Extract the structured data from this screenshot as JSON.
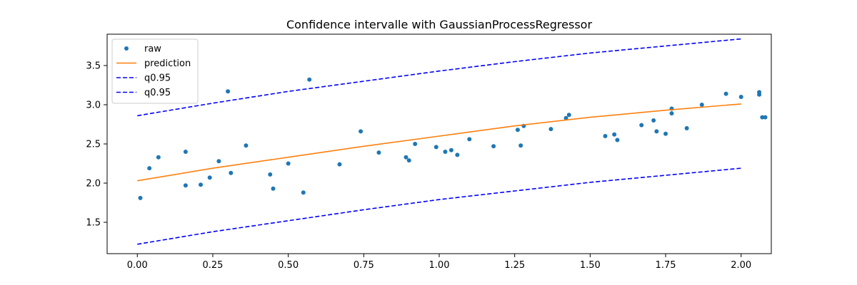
{
  "chart_data": {
    "type": "line",
    "title": "Confidence intervalle with GaussianProcessRegressor",
    "xlabel": "",
    "ylabel": "",
    "xlim": [
      -0.1,
      2.1
    ],
    "ylim": [
      1.1,
      3.9
    ],
    "x_ticks": [
      0.0,
      0.25,
      0.5,
      0.75,
      1.0,
      1.25,
      1.5,
      1.75,
      2.0
    ],
    "x_tick_labels": [
      "0.00",
      "0.25",
      "0.50",
      "0.75",
      "1.00",
      "1.25",
      "1.50",
      "1.75",
      "2.00"
    ],
    "y_ticks": [
      1.5,
      2.0,
      2.5,
      3.0,
      3.5
    ],
    "y_tick_labels": [
      "1.5",
      "2.0",
      "2.5",
      "3.0",
      "3.5"
    ],
    "grid": false,
    "legend_position": "top-left",
    "series": [
      {
        "name": "raw",
        "kind": "scatter",
        "color": "#1f77b4",
        "x": [
          0.01,
          0.04,
          0.07,
          0.16,
          0.16,
          0.21,
          0.24,
          0.27,
          0.3,
          0.31,
          0.36,
          0.44,
          0.45,
          0.5,
          0.55,
          0.57,
          0.67,
          0.74,
          0.8,
          0.89,
          0.9,
          0.92,
          0.99,
          1.02,
          1.04,
          1.06,
          1.1,
          1.18,
          1.26,
          1.27,
          1.28,
          1.37,
          1.42,
          1.43,
          1.55,
          1.58,
          1.59,
          1.67,
          1.71,
          1.72,
          1.75,
          1.77,
          1.77,
          1.82,
          1.87,
          1.95,
          2.0,
          2.06,
          2.06,
          2.07,
          2.08
        ],
        "y": [
          1.81,
          2.19,
          2.33,
          2.4,
          1.97,
          1.98,
          2.07,
          2.28,
          3.17,
          2.13,
          2.48,
          2.11,
          1.93,
          2.25,
          1.88,
          3.32,
          2.24,
          2.66,
          2.39,
          2.33,
          2.29,
          2.5,
          2.46,
          2.4,
          2.42,
          2.36,
          2.56,
          2.47,
          2.68,
          2.48,
          2.73,
          2.69,
          2.83,
          2.87,
          2.6,
          2.62,
          2.55,
          2.74,
          2.8,
          2.66,
          2.63,
          2.95,
          2.89,
          2.7,
          3.0,
          3.14,
          3.1,
          3.13,
          3.16,
          2.84,
          2.84
        ]
      },
      {
        "name": "prediction",
        "kind": "line",
        "color": "#ff7f0e",
        "dash": "solid",
        "x": [
          0.0,
          0.25,
          0.5,
          0.75,
          1.0,
          1.25,
          1.5,
          1.75,
          2.0
        ],
        "y": [
          2.03,
          2.19,
          2.33,
          2.47,
          2.6,
          2.73,
          2.84,
          2.93,
          3.01
        ]
      },
      {
        "name": "q0.95",
        "kind": "line",
        "color": "#0000ff",
        "dash": "dashed",
        "x": [
          0.0,
          0.25,
          0.5,
          0.75,
          1.0,
          1.25,
          1.5,
          1.75,
          2.0
        ],
        "y": [
          2.86,
          3.02,
          3.17,
          3.3,
          3.43,
          3.55,
          3.66,
          3.75,
          3.84
        ]
      },
      {
        "name": "q0.95",
        "kind": "line",
        "color": "#0000ff",
        "dash": "dashed",
        "x": [
          0.0,
          0.25,
          0.5,
          0.75,
          1.0,
          1.25,
          1.5,
          1.75,
          2.0
        ],
        "y": [
          1.22,
          1.38,
          1.52,
          1.66,
          1.79,
          1.9,
          2.01,
          2.1,
          2.19
        ]
      }
    ]
  }
}
